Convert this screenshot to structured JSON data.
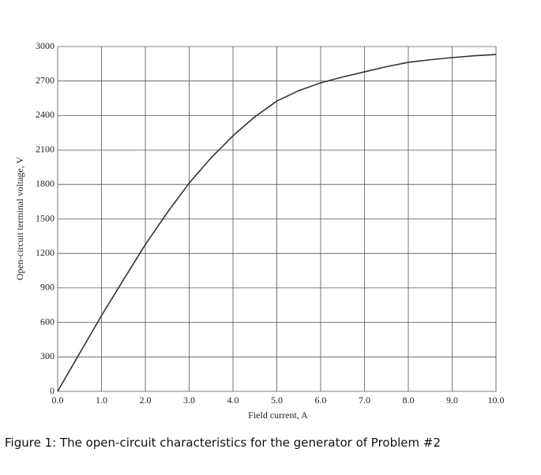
{
  "chart_data": {
    "type": "line",
    "xlabel": "Field current, A",
    "ylabel": "Open-circuit terminal voltage, V",
    "x": [
      0,
      0.5,
      1,
      1.5,
      2,
      2.5,
      3,
      3.5,
      4,
      4.5,
      5,
      5.5,
      6,
      6.5,
      7,
      7.5,
      8,
      8.5,
      9,
      9.5,
      10
    ],
    "series": [
      {
        "color": "#333333",
        "values": [
          0,
          330,
          659,
          970,
          1277,
          1555,
          1812,
          2032,
          2224,
          2389,
          2526,
          2616,
          2684,
          2735,
          2780,
          2825,
          2863,
          2885,
          2904,
          2920,
          2931
        ]
      }
    ],
    "xlim": [
      0,
      10
    ],
    "ylim": [
      0,
      3000
    ],
    "xticks": [
      {
        "value": 0,
        "label": "0.0"
      },
      {
        "value": 1,
        "label": "1.0"
      },
      {
        "value": 2,
        "label": "2.0"
      },
      {
        "value": 3,
        "label": "3.0"
      },
      {
        "value": 4,
        "label": "4.0"
      },
      {
        "value": 5,
        "label": "5.0"
      },
      {
        "value": 6,
        "label": "6.0"
      },
      {
        "value": 7,
        "label": "7.0"
      },
      {
        "value": 8,
        "label": "8.0"
      },
      {
        "value": 9,
        "label": "9.0"
      },
      {
        "value": 10,
        "label": "10.0"
      }
    ],
    "yticks": [
      0,
      300,
      600,
      900,
      1200,
      1500,
      1800,
      2100,
      2400,
      2700,
      3000
    ],
    "grid": true
  },
  "caption": "Figure 1: The open-circuit characteristics for the generator of Problem #2"
}
